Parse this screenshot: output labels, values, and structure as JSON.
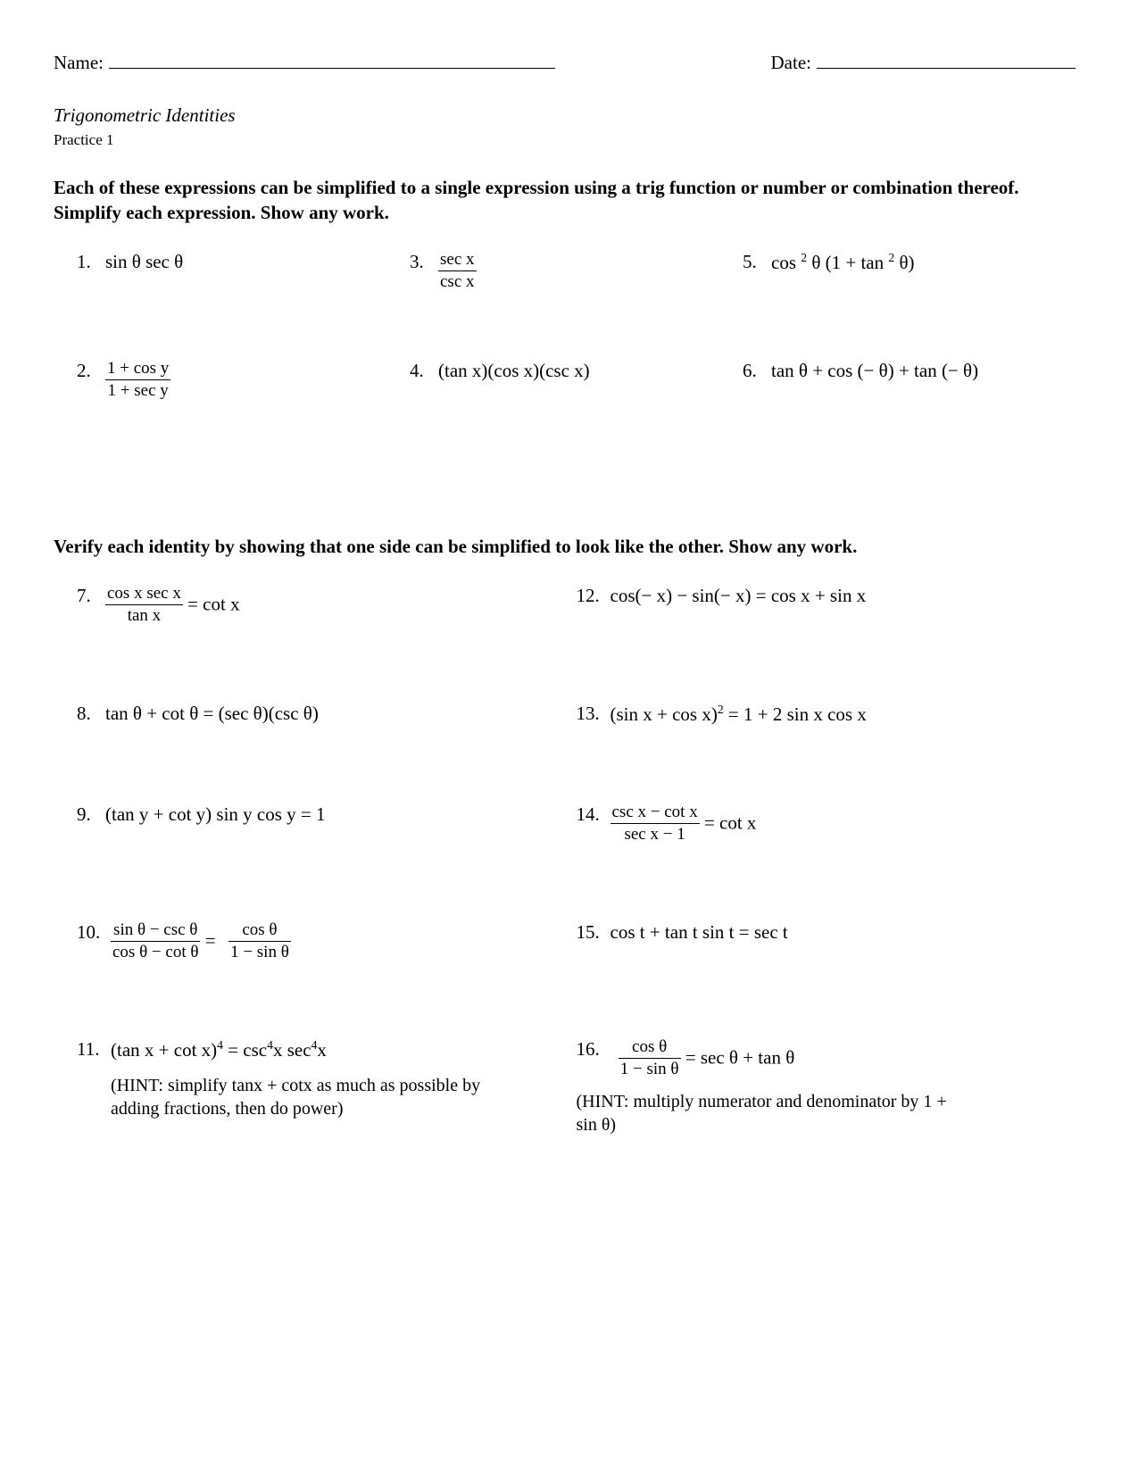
{
  "header": {
    "name_label": "Name:",
    "date_label": "Date:"
  },
  "title": "Trigonometric Identities",
  "practice": "Practice 1",
  "instr1": "Each of these expressions can be simplified to a single expression using a trig function or number or combination thereof.  Simplify each expression.  Show any work.",
  "instr2": "Verify each identity by showing that one side can be simplified to look like the other.  Show any work.",
  "p1": {
    "n": "1.",
    "text": "sin θ sec θ"
  },
  "p2": {
    "n": "2.",
    "top": "1 + cos y",
    "bot": "1 + sec y"
  },
  "p3": {
    "n": "3.",
    "top": "sec x",
    "bot": "csc x"
  },
  "p4": {
    "n": "4.",
    "text": "(tan x)(cos x)(csc x)"
  },
  "p5": {
    "n": "5.",
    "pre": "cos ",
    "sup": "2",
    "mid": " θ (1 + tan ",
    "sup2": "2",
    "post": " θ)"
  },
  "p6": {
    "n": "6.",
    "text": "tan θ + cos (− θ) + tan (− θ)"
  },
  "p7": {
    "n": "7.",
    "top": "cos x sec x",
    "bot": "tan x",
    "rhs": " = cot x"
  },
  "p8": {
    "n": "8.",
    "text": "tan θ + cot θ  =  (sec θ)(csc θ)"
  },
  "p9": {
    "n": "9.",
    "text": "(tan y + cot y) sin y cos y = 1"
  },
  "p10": {
    "n": "10.",
    "top1": "sin θ − csc θ",
    "bot1": "cos θ − cot θ",
    "eq": " = ",
    "top2": "cos θ",
    "bot2": "1 − sin θ"
  },
  "p11": {
    "n": "11.",
    "pre": "(tan x + cot x)",
    "sup": "4",
    "mid": " = csc",
    "sup2": "4",
    "mid2": "x  sec",
    "sup3": "4",
    "post": "x",
    "hint": "(HINT:  simplify tanx + cotx as much as possible by adding fractions, then do power)"
  },
  "p12": {
    "n": "12.",
    "text": "cos(− x) − sin(− x)  =  cos x + sin x"
  },
  "p13": {
    "n": "13.",
    "pre": "(sin x + cos x)",
    "sup": "2",
    "post": " = 1 + 2 sin x cos x"
  },
  "p14": {
    "n": "14.",
    "top": "csc x − cot x",
    "bot": "sec x − 1",
    "rhs": "  =  cot x"
  },
  "p15": {
    "n": "15.",
    "text": "cos t + tan t sin t = sec t"
  },
  "p16": {
    "n": "16.",
    "top": "cos θ",
    "bot": "1 − sin θ",
    "rhs": " =  sec θ + tan θ",
    "hint": "(HINT:  multiply numerator and denominator by 1 + sin θ)"
  }
}
